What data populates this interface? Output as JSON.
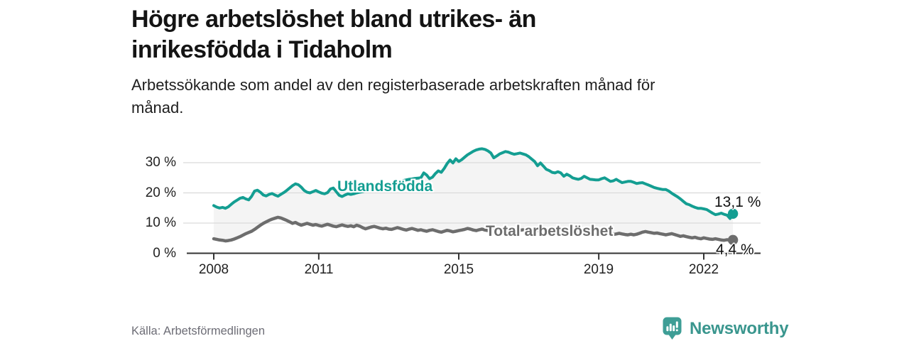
{
  "header": {
    "title_lines": [
      "Högre arbetslöshet bland utrikes- än",
      "inrikesfödda i Tidaholm"
    ],
    "subtitle_lines": [
      "Arbetssökande som andel av den registerbaserade arbetskraften månad för",
      "månad."
    ]
  },
  "footer": {
    "source": "Källa: Arbetsförmedlingen",
    "brand": "Newsworthy"
  },
  "colors": {
    "accent_teal": "#149e92",
    "series_gray": "#6d6d6d",
    "band_fill": "#f4f4f4",
    "gridline": "#d9d9d9",
    "axis": "#333333",
    "brand_teal": "#3a968e"
  },
  "chart_data": {
    "type": "line",
    "title": "Högre arbetslöshet bland utrikes- än inrikesfödda i Tidaholm",
    "subtitle": "Arbetssökande som andel av den registerbaserade arbetskraften månad för månad.",
    "unit": "%",
    "x_start_year": 2008,
    "x_frequency": "monthly",
    "x_end": "late 2022",
    "x_ticks": [
      2008,
      2011,
      2015,
      2019,
      2022
    ],
    "y_ticks": [
      0,
      10,
      20,
      30
    ],
    "y_tick_labels": [
      "0 %",
      "10 %",
      "20 %",
      "30 %"
    ],
    "ylim": [
      0,
      36
    ],
    "grid": "horizontal",
    "legend_position": "inline-labels",
    "fill_between_series": true,
    "series": [
      {
        "name": "Utlandsfödda",
        "color": "#149e92",
        "end_label": "13,1 %",
        "end_value": 13.1,
        "values": [
          15.8,
          15.3,
          15.0,
          15.2,
          14.9,
          15.4,
          16.2,
          17.0,
          17.6,
          18.2,
          18.5,
          18.0,
          17.7,
          18.9,
          20.6,
          20.9,
          20.2,
          19.3,
          19.0,
          19.5,
          19.8,
          19.3,
          18.9,
          19.5,
          20.1,
          20.8,
          21.6,
          22.4,
          23.0,
          22.7,
          21.9,
          20.8,
          20.2,
          20.0,
          20.4,
          20.8,
          20.3,
          19.9,
          19.7,
          20.1,
          21.3,
          21.6,
          20.4,
          19.2,
          18.8,
          19.3,
          19.7,
          19.5,
          19.7,
          20.0,
          20.2,
          20.4,
          20.7,
          20.9,
          21.2,
          21.5,
          21.8,
          22.1,
          22.4,
          22.7,
          22.9,
          23.1,
          23.4,
          23.7,
          23.9,
          24.1,
          24.3,
          24.5,
          24.6,
          24.8,
          24.9,
          25.0,
          26.6,
          25.9,
          24.7,
          25.2,
          26.4,
          27.3,
          26.8,
          28.1,
          29.7,
          30.9,
          29.9,
          31.3,
          30.4,
          31.0,
          31.8,
          32.6,
          33.2,
          33.8,
          34.2,
          34.5,
          34.6,
          34.4,
          33.9,
          33.2,
          31.6,
          32.2,
          32.9,
          33.3,
          33.7,
          33.5,
          33.1,
          32.8,
          33.0,
          33.2,
          32.9,
          32.6,
          32.0,
          31.2,
          30.4,
          29.0,
          29.9,
          28.9,
          27.8,
          27.4,
          26.8,
          26.6,
          27.0,
          26.6,
          25.5,
          26.2,
          25.7,
          25.0,
          24.7,
          24.5,
          24.8,
          25.5,
          25.0,
          24.5,
          24.4,
          24.3,
          24.3,
          24.7,
          25.0,
          24.4,
          23.8,
          24.0,
          24.5,
          23.9,
          23.4,
          23.6,
          23.8,
          23.8,
          23.5,
          23.1,
          23.3,
          23.4,
          23.0,
          22.6,
          22.2,
          21.8,
          21.5,
          21.3,
          21.1,
          21.1,
          20.6,
          19.9,
          19.3,
          18.7,
          18.0,
          17.2,
          16.4,
          16.1,
          15.6,
          15.2,
          14.9,
          14.9,
          14.7,
          14.5,
          13.9,
          13.3,
          12.8,
          13.0,
          13.3,
          12.9,
          12.6,
          11.5,
          13.1
        ]
      },
      {
        "name": "Total arbetslöshet",
        "color": "#6d6d6d",
        "end_label": "4,4 %",
        "end_value": 4.4,
        "values": [
          4.8,
          4.6,
          4.4,
          4.3,
          4.1,
          4.2,
          4.4,
          4.7,
          5.1,
          5.5,
          6.0,
          6.5,
          6.9,
          7.3,
          7.9,
          8.6,
          9.3,
          9.9,
          10.4,
          10.9,
          11.3,
          11.6,
          11.9,
          11.7,
          11.3,
          10.9,
          10.4,
          9.9,
          10.2,
          9.7,
          9.3,
          9.6,
          9.9,
          9.6,
          9.3,
          9.5,
          9.2,
          9.0,
          9.3,
          9.6,
          9.3,
          9.0,
          8.8,
          9.1,
          9.4,
          9.1,
          8.9,
          9.1,
          8.8,
          9.3,
          9.0,
          8.5,
          8.1,
          8.4,
          8.7,
          8.9,
          8.6,
          8.3,
          8.1,
          8.3,
          8.0,
          7.9,
          8.2,
          8.5,
          8.2,
          7.9,
          7.7,
          8.0,
          8.2,
          7.9,
          7.6,
          7.8,
          7.5,
          7.3,
          7.6,
          7.8,
          7.5,
          7.2,
          7.0,
          7.3,
          7.6,
          7.4,
          7.1,
          7.3,
          7.5,
          7.7,
          7.9,
          8.2,
          8.0,
          7.7,
          7.5,
          7.8,
          8.0,
          7.7,
          7.5,
          7.7,
          7.9,
          8.1,
          7.8,
          7.6,
          7.9,
          8.1,
          7.8,
          7.6,
          7.4,
          7.6,
          7.8,
          7.6,
          7.4,
          7.6,
          7.8,
          7.6,
          7.3,
          7.1,
          7.3,
          7.5,
          7.3,
          7.1,
          6.9,
          7.1,
          6.9,
          7.1,
          7.3,
          7.0,
          6.8,
          6.6,
          6.8,
          7.0,
          6.8,
          6.6,
          6.4,
          6.6,
          6.4,
          6.6,
          6.8,
          6.6,
          6.4,
          6.2,
          6.4,
          6.6,
          6.4,
          6.2,
          6.1,
          6.3,
          6.1,
          6.3,
          6.6,
          7.0,
          7.2,
          7.0,
          6.8,
          6.6,
          6.7,
          6.5,
          6.3,
          6.1,
          6.3,
          6.5,
          6.2,
          5.9,
          5.6,
          5.8,
          5.5,
          5.3,
          5.1,
          5.3,
          5.0,
          4.8,
          5.1,
          4.9,
          4.7,
          4.6,
          4.8,
          4.6,
          4.4,
          4.3,
          4.5,
          4.3,
          4.4
        ]
      }
    ]
  }
}
